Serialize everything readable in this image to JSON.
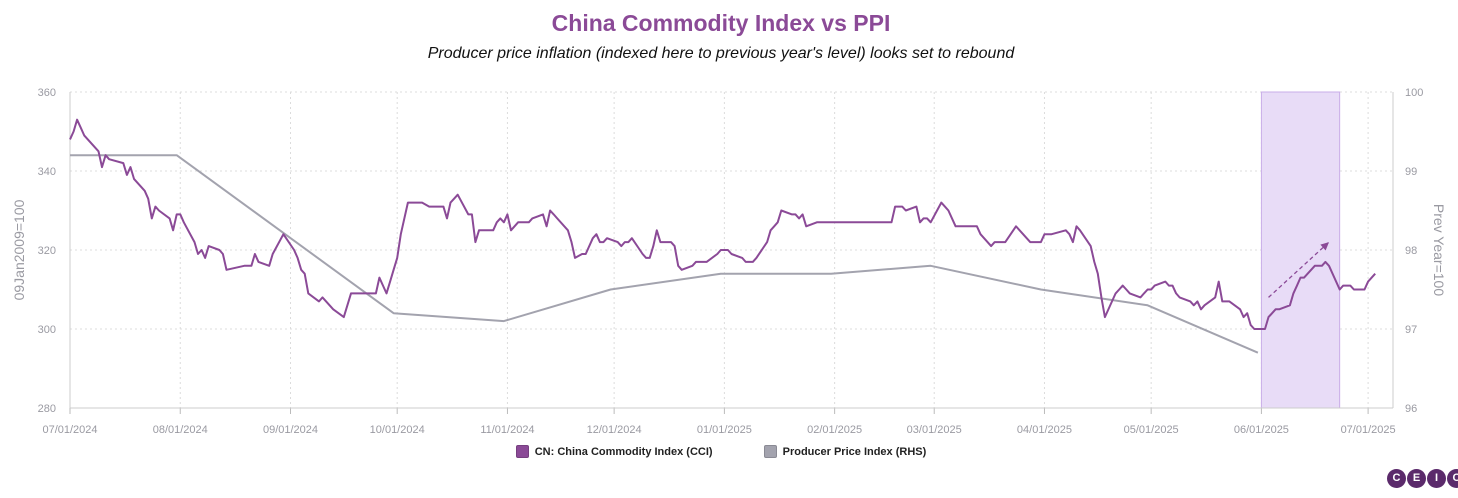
{
  "title": "China Commodity Index vs PPI",
  "subtitle": "Producer price inflation (indexed here to previous year's level) looks set to rebound",
  "legend": {
    "cci_label": "CN: China Commodity Index (CCI)",
    "ppi_label": "Producer Price Index (RHS)"
  },
  "logo_letters": [
    "C",
    "E",
    "I",
    "C"
  ],
  "colors": {
    "cci": "#8b4a97",
    "ppi": "#a3a3ae",
    "highlight_fill": "#e8dcf7",
    "highlight_stroke": "#c9aee8",
    "grid": "#dcdcdc",
    "logo": "#5b2a6b"
  },
  "chart_data": {
    "type": "line",
    "title": "China Commodity Index vs PPI",
    "subtitle": "Producer price inflation (indexed here to previous year's level) looks set to rebound",
    "ylabel": "09Jan2009=100",
    "y2label": "Prev Year=100",
    "ylim": [
      280,
      360
    ],
    "y2lim": [
      96,
      100
    ],
    "yticks": [
      280,
      300,
      320,
      340,
      360
    ],
    "y2ticks": [
      96,
      97,
      98,
      99,
      100
    ],
    "xlim": [
      "2024-07-01",
      "2025-07-08"
    ],
    "xticks": [
      "07/01/2024",
      "08/01/2024",
      "09/01/2024",
      "10/01/2024",
      "11/01/2024",
      "12/01/2024",
      "01/01/2025",
      "02/01/2025",
      "03/01/2025",
      "04/01/2025",
      "05/01/2025",
      "06/01/2025",
      "07/01/2025"
    ],
    "highlight_range": [
      "2025-06-01",
      "2025-06-23"
    ],
    "trend_arrow": {
      "from": [
        "2025-06-03",
        308
      ],
      "to": [
        "2025-06-20",
        322
      ]
    },
    "grid": true,
    "legend_position": "bottom",
    "series": [
      {
        "name": "CN: China Commodity Index (CCI)",
        "axis": "left",
        "points": [
          [
            "2024-07-01",
            348
          ],
          [
            "2024-07-02",
            350
          ],
          [
            "2024-07-03",
            353
          ],
          [
            "2024-07-04",
            351
          ],
          [
            "2024-07-05",
            349
          ],
          [
            "2024-07-08",
            346
          ],
          [
            "2024-07-09",
            345
          ],
          [
            "2024-07-10",
            341
          ],
          [
            "2024-07-11",
            344
          ],
          [
            "2024-07-12",
            343
          ],
          [
            "2024-07-16",
            342
          ],
          [
            "2024-07-17",
            339
          ],
          [
            "2024-07-18",
            341
          ],
          [
            "2024-07-19",
            338
          ],
          [
            "2024-07-22",
            335
          ],
          [
            "2024-07-23",
            333
          ],
          [
            "2024-07-24",
            328
          ],
          [
            "2024-07-25",
            331
          ],
          [
            "2024-07-26",
            330
          ],
          [
            "2024-07-29",
            328
          ],
          [
            "2024-07-30",
            325
          ],
          [
            "2024-07-31",
            329
          ],
          [
            "2024-08-01",
            329
          ],
          [
            "2024-08-02",
            327
          ],
          [
            "2024-08-05",
            322
          ],
          [
            "2024-08-06",
            319
          ],
          [
            "2024-08-07",
            320
          ],
          [
            "2024-08-08",
            318
          ],
          [
            "2024-08-09",
            321
          ],
          [
            "2024-08-12",
            320
          ],
          [
            "2024-08-13",
            319
          ],
          [
            "2024-08-14",
            315
          ],
          [
            "2024-08-19",
            316
          ],
          [
            "2024-08-21",
            316
          ],
          [
            "2024-08-22",
            319
          ],
          [
            "2024-08-23",
            317
          ],
          [
            "2024-08-26",
            316
          ],
          [
            "2024-08-27",
            319
          ],
          [
            "2024-08-30",
            324
          ],
          [
            "2024-09-02",
            320
          ],
          [
            "2024-09-03",
            318
          ],
          [
            "2024-09-04",
            315
          ],
          [
            "2024-09-05",
            314
          ],
          [
            "2024-09-06",
            309
          ],
          [
            "2024-09-09",
            307
          ],
          [
            "2024-09-10",
            308
          ],
          [
            "2024-09-12",
            306
          ],
          [
            "2024-09-13",
            305
          ],
          [
            "2024-09-16",
            303
          ],
          [
            "2024-09-18",
            309
          ],
          [
            "2024-09-20",
            309
          ],
          [
            "2024-09-25",
            309
          ],
          [
            "2024-09-26",
            313
          ],
          [
            "2024-09-27",
            311
          ],
          [
            "2024-09-28",
            309
          ],
          [
            "2024-09-29",
            312
          ],
          [
            "2024-09-30",
            315
          ],
          [
            "2024-10-01",
            318
          ],
          [
            "2024-10-02",
            324
          ],
          [
            "2024-10-04",
            332
          ],
          [
            "2024-10-08",
            332
          ],
          [
            "2024-10-10",
            331
          ],
          [
            "2024-10-14",
            331
          ],
          [
            "2024-10-15",
            328
          ],
          [
            "2024-10-16",
            332
          ],
          [
            "2024-10-17",
            333
          ],
          [
            "2024-10-18",
            334
          ],
          [
            "2024-10-21",
            329
          ],
          [
            "2024-10-22",
            329
          ],
          [
            "2024-10-23",
            322
          ],
          [
            "2024-10-24",
            325
          ],
          [
            "2024-10-25",
            325
          ],
          [
            "2024-10-28",
            325
          ],
          [
            "2024-10-29",
            327
          ],
          [
            "2024-10-30",
            328
          ],
          [
            "2024-10-31",
            327
          ],
          [
            "2024-11-01",
            329
          ],
          [
            "2024-11-02",
            325
          ],
          [
            "2024-11-04",
            327
          ],
          [
            "2024-11-05",
            327
          ],
          [
            "2024-11-06",
            327
          ],
          [
            "2024-11-07",
            327
          ],
          [
            "2024-11-08",
            328
          ],
          [
            "2024-11-11",
            329
          ],
          [
            "2024-11-12",
            326
          ],
          [
            "2024-11-13",
            330
          ],
          [
            "2024-11-14",
            329
          ],
          [
            "2024-11-15",
            328
          ],
          [
            "2024-11-18",
            325
          ],
          [
            "2024-11-19",
            322
          ],
          [
            "2024-11-20",
            318
          ],
          [
            "2024-11-22",
            319
          ],
          [
            "2024-11-23",
            319
          ],
          [
            "2024-11-25",
            323
          ],
          [
            "2024-11-26",
            324
          ],
          [
            "2024-11-27",
            322
          ],
          [
            "2024-11-28",
            322
          ],
          [
            "2024-11-29",
            323
          ],
          [
            "2024-12-02",
            322
          ],
          [
            "2024-12-03",
            321
          ],
          [
            "2024-12-04",
            322
          ],
          [
            "2024-12-05",
            322
          ],
          [
            "2024-12-06",
            323
          ],
          [
            "2024-12-09",
            319
          ],
          [
            "2024-12-10",
            318
          ],
          [
            "2024-12-11",
            318
          ],
          [
            "2024-12-12",
            321
          ],
          [
            "2024-12-13",
            325
          ],
          [
            "2024-12-14",
            322
          ],
          [
            "2024-12-16",
            322
          ],
          [
            "2024-12-17",
            322
          ],
          [
            "2024-12-18",
            321
          ],
          [
            "2024-12-19",
            316
          ],
          [
            "2024-12-20",
            315
          ],
          [
            "2024-12-23",
            316
          ],
          [
            "2024-12-24",
            317
          ],
          [
            "2024-12-25",
            317
          ],
          [
            "2024-12-26",
            317
          ],
          [
            "2024-12-27",
            317
          ],
          [
            "2024-12-30",
            319
          ],
          [
            "2024-12-31",
            320
          ],
          [
            "2025-01-02",
            320
          ],
          [
            "2025-01-03",
            319
          ],
          [
            "2025-01-06",
            318
          ],
          [
            "2025-01-07",
            317
          ],
          [
            "2025-01-08",
            317
          ],
          [
            "2025-01-09",
            317
          ],
          [
            "2025-01-10",
            318
          ],
          [
            "2025-01-13",
            322
          ],
          [
            "2025-01-14",
            325
          ],
          [
            "2025-01-15",
            326
          ],
          [
            "2025-01-16",
            327
          ],
          [
            "2025-01-17",
            330
          ],
          [
            "2025-01-20",
            329
          ],
          [
            "2025-01-21",
            329
          ],
          [
            "2025-01-22",
            328
          ],
          [
            "2025-01-23",
            329
          ],
          [
            "2025-01-24",
            326
          ],
          [
            "2025-01-27",
            327
          ],
          [
            "2025-02-04",
            327
          ],
          [
            "2025-02-05",
            327
          ],
          [
            "2025-02-10",
            327
          ],
          [
            "2025-02-11",
            327
          ],
          [
            "2025-02-12",
            327
          ],
          [
            "2025-02-14",
            327
          ],
          [
            "2025-02-17",
            327
          ],
          [
            "2025-02-18",
            331
          ],
          [
            "2025-02-19",
            331
          ],
          [
            "2025-02-20",
            331
          ],
          [
            "2025-02-21",
            330
          ],
          [
            "2025-02-24",
            331
          ],
          [
            "2025-02-25",
            327
          ],
          [
            "2025-02-26",
            328
          ],
          [
            "2025-02-27",
            328
          ],
          [
            "2025-02-28",
            327
          ],
          [
            "2025-03-03",
            332
          ],
          [
            "2025-03-04",
            331
          ],
          [
            "2025-03-05",
            330
          ],
          [
            "2025-03-06",
            328
          ],
          [
            "2025-03-07",
            326
          ],
          [
            "2025-03-10",
            326
          ],
          [
            "2025-03-11",
            326
          ],
          [
            "2025-03-12",
            326
          ],
          [
            "2025-03-13",
            326
          ],
          [
            "2025-03-14",
            324
          ],
          [
            "2025-03-17",
            321
          ],
          [
            "2025-03-18",
            322
          ],
          [
            "2025-03-19",
            322
          ],
          [
            "2025-03-20",
            322
          ],
          [
            "2025-03-21",
            322
          ],
          [
            "2025-03-24",
            326
          ],
          [
            "2025-03-25",
            325
          ],
          [
            "2025-03-26",
            324
          ],
          [
            "2025-03-27",
            323
          ],
          [
            "2025-03-28",
            322
          ],
          [
            "2025-03-31",
            322
          ],
          [
            "2025-04-01",
            324
          ],
          [
            "2025-04-02",
            324
          ],
          [
            "2025-04-03",
            324
          ],
          [
            "2025-04-07",
            325
          ],
          [
            "2025-04-08",
            324
          ],
          [
            "2025-04-09",
            322
          ],
          [
            "2025-04-10",
            326
          ],
          [
            "2025-04-11",
            325
          ],
          [
            "2025-04-14",
            321
          ],
          [
            "2025-04-15",
            317
          ],
          [
            "2025-04-16",
            314
          ],
          [
            "2025-04-17",
            308
          ],
          [
            "2025-04-18",
            303
          ],
          [
            "2025-04-21",
            309
          ],
          [
            "2025-04-22",
            310
          ],
          [
            "2025-04-23",
            311
          ],
          [
            "2025-04-24",
            310
          ],
          [
            "2025-04-25",
            309
          ],
          [
            "2025-04-28",
            308
          ],
          [
            "2025-04-29",
            309
          ],
          [
            "2025-04-30",
            310
          ],
          [
            "2025-05-01",
            310
          ],
          [
            "2025-05-02",
            311
          ],
          [
            "2025-05-05",
            312
          ],
          [
            "2025-05-06",
            311
          ],
          [
            "2025-05-07",
            311
          ],
          [
            "2025-05-08",
            309
          ],
          [
            "2025-05-09",
            308
          ],
          [
            "2025-05-12",
            307
          ],
          [
            "2025-05-13",
            306
          ],
          [
            "2025-05-14",
            307
          ],
          [
            "2025-05-15",
            305
          ],
          [
            "2025-05-16",
            306
          ],
          [
            "2025-05-19",
            308
          ],
          [
            "2025-05-20",
            312
          ],
          [
            "2025-05-21",
            307
          ],
          [
            "2025-05-22",
            307
          ],
          [
            "2025-05-23",
            307
          ],
          [
            "2025-05-26",
            305
          ],
          [
            "2025-05-27",
            303
          ],
          [
            "2025-05-28",
            304
          ],
          [
            "2025-05-29",
            301
          ],
          [
            "2025-05-30",
            300
          ],
          [
            "2025-06-02",
            300
          ],
          [
            "2025-06-03",
            303
          ],
          [
            "2025-06-04",
            304
          ],
          [
            "2025-06-05",
            305
          ],
          [
            "2025-06-06",
            305
          ],
          [
            "2025-06-09",
            306
          ],
          [
            "2025-06-10",
            309
          ],
          [
            "2025-06-11",
            311
          ],
          [
            "2025-06-12",
            313
          ],
          [
            "2025-06-13",
            313
          ],
          [
            "2025-06-16",
            316
          ],
          [
            "2025-06-17",
            316
          ],
          [
            "2025-06-18",
            316
          ],
          [
            "2025-06-19",
            317
          ],
          [
            "2025-06-20",
            316
          ],
          [
            "2025-06-23",
            310
          ],
          [
            "2025-06-24",
            311
          ],
          [
            "2025-06-25",
            311
          ],
          [
            "2025-06-26",
            311
          ],
          [
            "2025-06-27",
            310
          ],
          [
            "2025-06-30",
            310
          ],
          [
            "2025-07-01",
            312
          ],
          [
            "2025-07-02",
            313
          ],
          [
            "2025-07-03",
            314
          ]
        ]
      },
      {
        "name": "Producer Price Index (RHS)",
        "axis": "right",
        "points": [
          [
            "2024-07-01",
            99.2
          ],
          [
            "2024-07-31",
            99.2
          ],
          [
            "2024-09-30",
            97.2
          ],
          [
            "2024-10-31",
            97.1
          ],
          [
            "2024-11-30",
            97.5
          ],
          [
            "2024-12-31",
            97.7
          ],
          [
            "2025-01-31",
            97.7
          ],
          [
            "2025-02-28",
            97.8
          ],
          [
            "2025-03-31",
            97.5
          ],
          [
            "2025-04-30",
            97.3
          ],
          [
            "2025-05-31",
            96.7
          ]
        ]
      }
    ]
  }
}
